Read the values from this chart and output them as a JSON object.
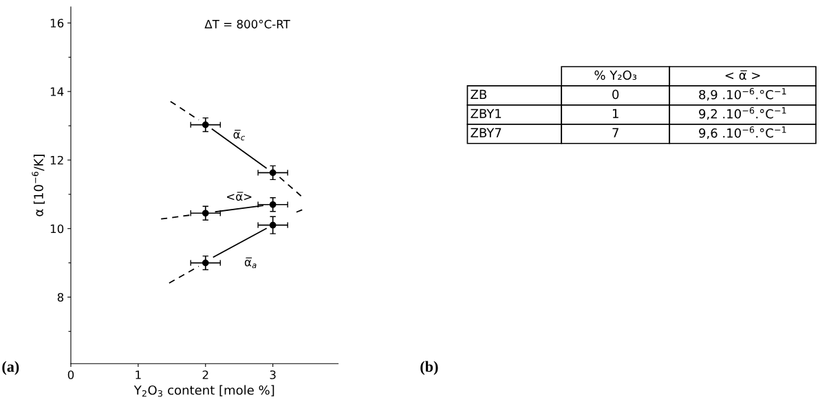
{
  "chart_data": [
    {
      "type": "scatter",
      "xlabel": "Y$_{2}$O$_{3}$ content [mole %]",
      "ylabel": "α [10$^{−6}$/K]",
      "annotations": [
        "ΔT = 800°C-RT",
        "(a)"
      ],
      "xlim": [
        0,
        3.97
      ],
      "ylim": [
        6.06,
        16.47
      ],
      "xticks": [
        0,
        1,
        2,
        3
      ],
      "yticks": [
        {
          "value": 7,
          "label": null
        },
        8,
        {
          "value": 9,
          "label": null
        },
        10,
        {
          "value": 11,
          "label": null
        },
        12,
        {
          "value": 13,
          "label": null
        },
        14,
        {
          "value": 15,
          "label": null
        },
        16
      ],
      "grid": false,
      "marker": "circle",
      "series": [
        {
          "name": "α̅$_{c}$",
          "type": "scatter",
          "color": "#000000",
          "x": [
            2,
            3
          ],
          "values": [
            13.03,
            11.63
          ],
          "errors": [
            0.2,
            0.2
          ],
          "xerrors": [
            0.22,
            0.22
          ]
        },
        {
          "name": "<α̅>",
          "type": "scatter",
          "color": "#000000",
          "x": [
            2,
            3
          ],
          "values": [
            10.45,
            10.7
          ],
          "errors": [
            0.2,
            0.2
          ],
          "xerrors": [
            0.22,
            0.22
          ]
        },
        {
          "name": "α̅$_{a}$",
          "type": "scatter",
          "color": "#000000",
          "x": [
            2,
            3
          ],
          "values": [
            9.0,
            10.1
          ],
          "errors": [
            0.2,
            0.25
          ],
          "xerrors": [
            0.22,
            0.22
          ]
        },
        {
          "type": "line",
          "marker": "none",
          "color": "#000000",
          "line_style": "solid",
          "x": [
            2.1,
            2.9
          ],
          "values": [
            12.9,
            11.77
          ]
        },
        {
          "type": "line",
          "marker": "none",
          "color": "#000000",
          "line_style": "dashed",
          "x": [
            1.48,
            1.9
          ],
          "values": [
            13.71,
            13.17
          ]
        },
        {
          "type": "line",
          "marker": "none",
          "color": "#000000",
          "line_style": "dashed",
          "x": [
            3.1,
            3.42
          ],
          "values": [
            11.5,
            10.95
          ]
        },
        {
          "type": "line",
          "marker": "none",
          "color": "#000000",
          "line_style": "solid",
          "x": [
            2.15,
            2.85
          ],
          "values": [
            10.49,
            10.67
          ]
        },
        {
          "type": "line",
          "marker": "none",
          "color": "#000000",
          "line_style": "dashed",
          "x": [
            1.34,
            1.8
          ],
          "values": [
            10.28,
            10.4
          ]
        },
        {
          "type": "line",
          "marker": "none",
          "color": "#000000",
          "line_style": "solid",
          "x": [
            2.12,
            2.9
          ],
          "values": [
            9.17,
            10.0
          ]
        },
        {
          "type": "line",
          "marker": "none",
          "color": "#000000",
          "line_style": "dashed",
          "x": [
            1.46,
            1.9
          ],
          "values": [
            8.41,
            8.9
          ]
        },
        {
          "type": "line",
          "marker": "none",
          "color": "#000000",
          "line_style": "dashed",
          "x": [
            3.35,
            3.45
          ],
          "values": [
            10.48,
            10.56
          ]
        }
      ]
    },
    {
      "type": "other",
      "annotations": [
        "(b)"
      ],
      "categories": [
        null,
        "% Y₂O₃",
        "< α̅ >"
      ],
      "y_categories": [
        "ZB",
        "ZBY1",
        "ZBY7"
      ],
      "cells": [
        [
          "0",
          "8,9 .10$^{−6}$.°C$^{−1}$"
        ],
        [
          "1",
          "9,2 .10$^{−6}$.°C$^{−1}$"
        ],
        [
          "7",
          "9,6 .10$^{−6}$.°C$^{−1}$"
        ]
      ]
    }
  ]
}
